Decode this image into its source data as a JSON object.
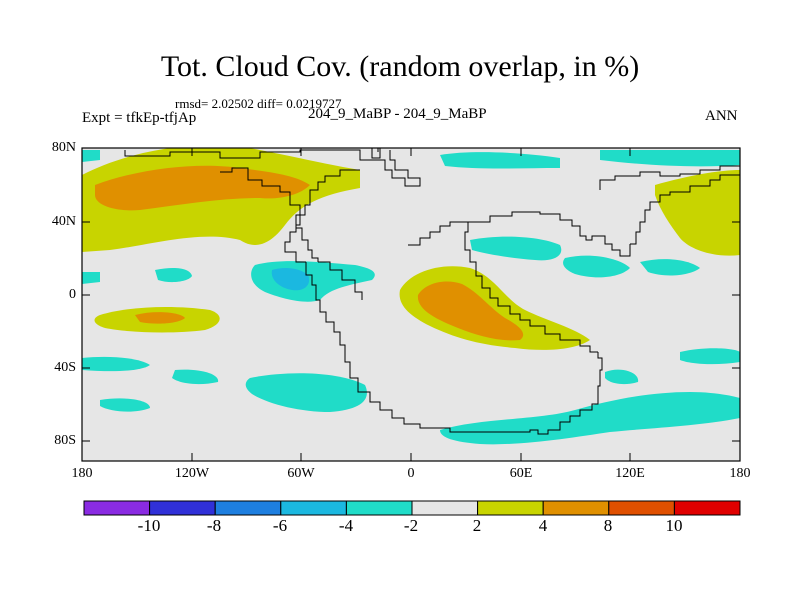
{
  "title": "Tot. Cloud Cov. (random overlap, in %)",
  "stats": "rmsd= 2.02502 diff= 0.0219727",
  "experiment": "Expt = tfkEp-tfjAp",
  "runs": "204_9_MaBP - 204_9_MaBP",
  "season": "ANN",
  "lat_ticks": [
    "80N",
    "40N",
    "0",
    "40S",
    "80S"
  ],
  "lon_ticks": [
    "180",
    "120W",
    "60W",
    "0",
    "60E",
    "120E",
    "180"
  ],
  "colorbar": {
    "labels": [
      "-10",
      "-8",
      "-6",
      "-4",
      "-2",
      "2",
      "4",
      "8",
      "10"
    ],
    "colors": [
      "#8a2be2",
      "#3030d8",
      "#1e7fe0",
      "#1bb8e0",
      "#20dcc8",
      "#e6e6e6",
      "#c8d400",
      "#e09000",
      "#e05000",
      "#e00000"
    ]
  },
  "colors": {
    "background_field": "#e6e6e6",
    "coast": "#000000"
  }
}
